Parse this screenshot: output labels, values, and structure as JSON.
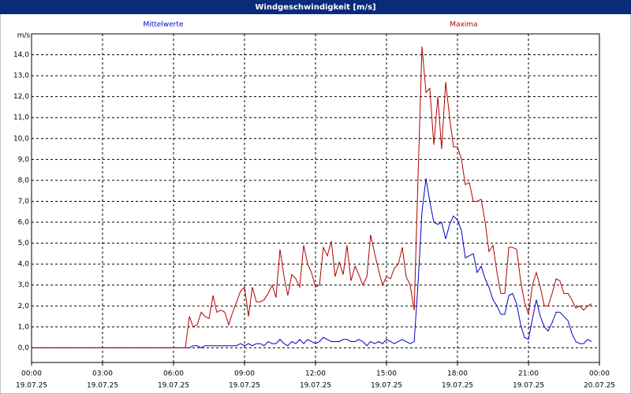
{
  "chart_data": {
    "type": "line",
    "title": "Windgeschwindigkeit [m/s]",
    "y_label": "m/s",
    "xlim": [
      0,
      24
    ],
    "xticks": [
      {
        "value": 0,
        "label": "00:00"
      },
      {
        "value": 3,
        "label": "03:00"
      },
      {
        "value": 6,
        "label": "06:00"
      },
      {
        "value": 9,
        "label": "09:00"
      },
      {
        "value": 12,
        "label": "12:00"
      },
      {
        "value": 15,
        "label": "15:00"
      },
      {
        "value": 18,
        "label": "18:00"
      },
      {
        "value": 21,
        "label": "21:00"
      },
      {
        "value": 24,
        "label": "00:00"
      }
    ],
    "xtick_dates": [
      "19.07.25",
      "19.07.25",
      "19.07.25",
      "19.07.25",
      "19.07.25",
      "19.07.25",
      "19.07.25",
      "19.07.25",
      "20.07.25"
    ],
    "ylim": [
      -0.7,
      15
    ],
    "yticks": [
      {
        "value": 0,
        "label": "0,0"
      },
      {
        "value": 1,
        "label": "1,0"
      },
      {
        "value": 2,
        "label": "2,0"
      },
      {
        "value": 3,
        "label": "3,0"
      },
      {
        "value": 4,
        "label": "4,0"
      },
      {
        "value": 5,
        "label": "5,0"
      },
      {
        "value": 6,
        "label": "6,0"
      },
      {
        "value": 7,
        "label": "7,0"
      },
      {
        "value": 8,
        "label": "8,0"
      },
      {
        "value": 9,
        "label": "9,0"
      },
      {
        "value": 10,
        "label": "10,0"
      },
      {
        "value": 11,
        "label": "11,0"
      },
      {
        "value": 12,
        "label": "12,0"
      },
      {
        "value": 13,
        "label": "13,0"
      },
      {
        "value": 14,
        "label": "14,0"
      }
    ],
    "grid": true,
    "x": [
      0,
      6.5,
      6.67,
      6.83,
      7,
      7.17,
      7.33,
      7.5,
      7.67,
      7.83,
      8,
      8.17,
      8.33,
      8.5,
      8.67,
      8.83,
      9,
      9.17,
      9.33,
      9.5,
      9.67,
      9.83,
      10,
      10.17,
      10.33,
      10.5,
      10.67,
      10.83,
      11,
      11.17,
      11.33,
      11.5,
      11.67,
      11.83,
      12,
      12.17,
      12.33,
      12.5,
      12.67,
      12.83,
      13,
      13.17,
      13.33,
      13.5,
      13.67,
      13.83,
      14,
      14.17,
      14.33,
      14.5,
      14.67,
      14.83,
      15,
      15.17,
      15.33,
      15.5,
      15.67,
      15.83,
      16,
      16.17,
      16.33,
      16.5,
      16.67,
      16.83,
      17,
      17.17,
      17.33,
      17.5,
      17.67,
      17.83,
      18,
      18.17,
      18.33,
      18.5,
      18.67,
      18.83,
      19,
      19.17,
      19.33,
      19.5,
      19.67,
      19.83,
      20,
      20.17,
      20.33,
      20.5,
      20.67,
      20.83,
      21,
      21.17,
      21.33,
      21.5,
      21.67,
      21.83,
      22,
      22.17,
      22.33,
      22.5,
      22.67,
      22.83,
      23,
      23.17,
      23.33,
      23.5,
      23.67
    ],
    "series": [
      {
        "name": "Mittelwerte",
        "color": "#0000c8",
        "values": [
          0,
          0,
          0,
          0.1,
          0.1,
          0,
          0.1,
          0.1,
          0.1,
          0.1,
          0.1,
          0.1,
          0.1,
          0.1,
          0.1,
          0.2,
          0.1,
          0.2,
          0.1,
          0.2,
          0.2,
          0.1,
          0.3,
          0.2,
          0.2,
          0.4,
          0.2,
          0.1,
          0.3,
          0.2,
          0.4,
          0.2,
          0.4,
          0.3,
          0.2,
          0.3,
          0.5,
          0.4,
          0.3,
          0.3,
          0.3,
          0.4,
          0.4,
          0.3,
          0.3,
          0.4,
          0.3,
          0.1,
          0.3,
          0.2,
          0.3,
          0.2,
          0.4,
          0.3,
          0.2,
          0.3,
          0.4,
          0.3,
          0.2,
          0.3,
          3.0,
          6.5,
          8.1,
          7.0,
          6.0,
          5.9,
          6.0,
          5.2,
          5.9,
          6.3,
          6.1,
          5.6,
          4.3,
          4.4,
          4.5,
          3.6,
          3.9,
          3.3,
          2.9,
          2.3,
          2.0,
          1.6,
          1.6,
          2.5,
          2.6,
          2.1,
          1.1,
          0.5,
          0.4,
          1.4,
          2.3,
          1.5,
          1.0,
          0.8,
          1.2,
          1.7,
          1.7,
          1.5,
          1.3,
          0.7,
          0.3,
          0.2,
          0.2,
          0.4,
          0.3
        ]
      },
      {
        "name": "Maxima",
        "color": "#b00000",
        "values": [
          0,
          0,
          1.5,
          1.0,
          1.1,
          1.7,
          1.5,
          1.4,
          2.5,
          1.7,
          1.8,
          1.7,
          1.1,
          1.7,
          2.2,
          2.7,
          2.9,
          1.5,
          2.9,
          2.2,
          2.2,
          2.3,
          2.6,
          3.0,
          2.4,
          4.7,
          3.4,
          2.5,
          3.5,
          3.3,
          2.9,
          4.9,
          4.0,
          3.6,
          2.9,
          3.0,
          4.8,
          4.4,
          5.1,
          3.4,
          4.1,
          3.5,
          4.9,
          3.2,
          3.9,
          3.5,
          3.0,
          3.4,
          5.4,
          4.5,
          3.7,
          3.0,
          3.4,
          3.3,
          3.8,
          4.0,
          4.8,
          3.4,
          3.0,
          1.8,
          8.0,
          14.4,
          12.2,
          12.4,
          9.7,
          12.0,
          9.5,
          12.7,
          11.0,
          9.6,
          9.6,
          9.0,
          7.8,
          7.9,
          7.0,
          7.0,
          7.1,
          6.0,
          4.6,
          4.9,
          3.6,
          2.6,
          2.6,
          4.8,
          4.8,
          4.7,
          3.2,
          2.2,
          1.6,
          3.0,
          3.6,
          2.9,
          2.0,
          2.0,
          2.6,
          3.3,
          3.2,
          2.6,
          2.6,
          2.3,
          1.9,
          2.0,
          1.8,
          2.0,
          2.1
        ]
      }
    ]
  }
}
